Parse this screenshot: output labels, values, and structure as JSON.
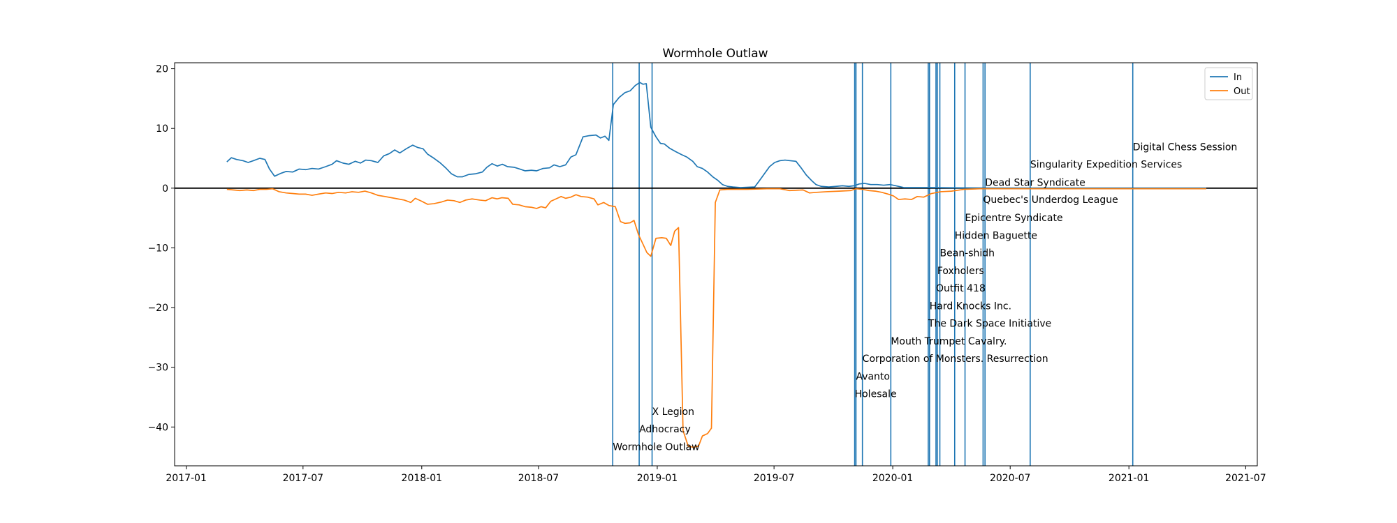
{
  "chart_data": {
    "type": "line",
    "title": "Wormhole Outlaw",
    "xlabel": "",
    "ylabel": "",
    "xlim": [
      "2016-12-14",
      "2021-07-19"
    ],
    "ylim": [
      -46.5,
      21
    ],
    "x_ticks": [
      "2017-01-01",
      "2017-07-01",
      "2018-01-01",
      "2018-07-01",
      "2019-01-01",
      "2019-07-01",
      "2020-01-01",
      "2020-07-01",
      "2021-01-01",
      "2021-07-01"
    ],
    "x_tick_labels": [
      "2017-01",
      "2017-07",
      "2018-01",
      "2018-07",
      "2019-01",
      "2019-07",
      "2020-01",
      "2020-07",
      "2021-01",
      "2021-07"
    ],
    "y_ticks": [
      20,
      10,
      0,
      -10,
      -20,
      -30,
      -40
    ],
    "y_tick_labels": [
      "20",
      "10",
      "0",
      "−10",
      "−20",
      "−30",
      "−40"
    ],
    "grid": false,
    "legend_position": "top-right",
    "zero_line": 0,
    "colors": {
      "in": "#1f77b4",
      "out": "#ff7f0e",
      "event": "#1f77b4",
      "zero": "#000000"
    },
    "series": [
      {
        "name": "In",
        "color": "#1f77b4",
        "points": [
          [
            "2017-03-05",
            4.4
          ],
          [
            "2017-03-12",
            5.1
          ],
          [
            "2017-03-20",
            4.8
          ],
          [
            "2017-03-30",
            4.6
          ],
          [
            "2017-04-07",
            4.3
          ],
          [
            "2017-04-15",
            4.6
          ],
          [
            "2017-04-25",
            5.0
          ],
          [
            "2017-05-03",
            4.8
          ],
          [
            "2017-05-10",
            3.2
          ],
          [
            "2017-05-18",
            2.0
          ],
          [
            "2017-05-28",
            2.5
          ],
          [
            "2017-06-05",
            2.8
          ],
          [
            "2017-06-15",
            2.7
          ],
          [
            "2017-06-25",
            3.2
          ],
          [
            "2017-07-05",
            3.1
          ],
          [
            "2017-07-15",
            3.3
          ],
          [
            "2017-07-25",
            3.2
          ],
          [
            "2017-08-05",
            3.6
          ],
          [
            "2017-08-15",
            4.0
          ],
          [
            "2017-08-22",
            4.6
          ],
          [
            "2017-09-01",
            4.2
          ],
          [
            "2017-09-10",
            4.0
          ],
          [
            "2017-09-20",
            4.5
          ],
          [
            "2017-09-28",
            4.2
          ],
          [
            "2017-10-06",
            4.7
          ],
          [
            "2017-10-15",
            4.6
          ],
          [
            "2017-10-25",
            4.3
          ],
          [
            "2017-11-03",
            5.4
          ],
          [
            "2017-11-12",
            5.8
          ],
          [
            "2017-11-20",
            6.4
          ],
          [
            "2017-11-28",
            5.9
          ],
          [
            "2017-12-08",
            6.6
          ],
          [
            "2017-12-18",
            7.2
          ],
          [
            "2017-12-26",
            6.8
          ],
          [
            "2018-01-03",
            6.6
          ],
          [
            "2018-01-10",
            5.7
          ],
          [
            "2018-01-20",
            5.0
          ],
          [
            "2018-01-30",
            4.2
          ],
          [
            "2018-02-08",
            3.3
          ],
          [
            "2018-02-16",
            2.4
          ],
          [
            "2018-02-25",
            1.9
          ],
          [
            "2018-03-05",
            1.9
          ],
          [
            "2018-03-15",
            2.3
          ],
          [
            "2018-03-25",
            2.4
          ],
          [
            "2018-04-05",
            2.7
          ],
          [
            "2018-04-12",
            3.5
          ],
          [
            "2018-04-20",
            4.1
          ],
          [
            "2018-04-28",
            3.7
          ],
          [
            "2018-05-06",
            4.0
          ],
          [
            "2018-05-14",
            3.6
          ],
          [
            "2018-05-24",
            3.5
          ],
          [
            "2018-06-02",
            3.2
          ],
          [
            "2018-06-10",
            2.9
          ],
          [
            "2018-06-20",
            3.0
          ],
          [
            "2018-06-28",
            2.9
          ],
          [
            "2018-07-08",
            3.3
          ],
          [
            "2018-07-18",
            3.4
          ],
          [
            "2018-07-25",
            3.9
          ],
          [
            "2018-08-03",
            3.6
          ],
          [
            "2018-08-12",
            3.9
          ],
          [
            "2018-08-20",
            5.2
          ],
          [
            "2018-08-28",
            5.6
          ],
          [
            "2018-09-08",
            8.6
          ],
          [
            "2018-09-18",
            8.8
          ],
          [
            "2018-09-28",
            8.9
          ],
          [
            "2018-10-05",
            8.4
          ],
          [
            "2018-10-12",
            8.7
          ],
          [
            "2018-10-18",
            8.0
          ],
          [
            "2018-10-25",
            14.0
          ],
          [
            "2018-11-03",
            15.2
          ],
          [
            "2018-11-12",
            16.0
          ],
          [
            "2018-11-20",
            16.3
          ],
          [
            "2018-11-28",
            17.2
          ],
          [
            "2018-12-05",
            17.7
          ],
          [
            "2018-12-10",
            17.4
          ],
          [
            "2018-12-15",
            17.5
          ],
          [
            "2018-12-22",
            10.2
          ],
          [
            "2018-12-30",
            8.6
          ],
          [
            "2019-01-06",
            7.5
          ],
          [
            "2019-01-12",
            7.4
          ],
          [
            "2019-01-20",
            6.7
          ],
          [
            "2019-01-30",
            6.1
          ],
          [
            "2019-02-08",
            5.6
          ],
          [
            "2019-02-16",
            5.2
          ],
          [
            "2019-02-25",
            4.5
          ],
          [
            "2019-03-04",
            3.6
          ],
          [
            "2019-03-12",
            3.3
          ],
          [
            "2019-03-20",
            2.7
          ],
          [
            "2019-03-28",
            1.9
          ],
          [
            "2019-04-05",
            1.3
          ],
          [
            "2019-04-12",
            0.6
          ],
          [
            "2019-04-20",
            0.3
          ],
          [
            "2019-04-28",
            0.2
          ],
          [
            "2019-05-10",
            0.1
          ],
          [
            "2019-06-01",
            0.2
          ],
          [
            "2019-06-08",
            1.2
          ],
          [
            "2019-06-16",
            2.4
          ],
          [
            "2019-06-24",
            3.6
          ],
          [
            "2019-07-02",
            4.3
          ],
          [
            "2019-07-10",
            4.6
          ],
          [
            "2019-07-18",
            4.7
          ],
          [
            "2019-07-26",
            4.6
          ],
          [
            "2019-08-04",
            4.5
          ],
          [
            "2019-08-12",
            3.4
          ],
          [
            "2019-08-20",
            2.2
          ],
          [
            "2019-08-28",
            1.3
          ],
          [
            "2019-09-04",
            0.6
          ],
          [
            "2019-09-12",
            0.3
          ],
          [
            "2019-09-24",
            0.2
          ],
          [
            "2019-10-05",
            0.3
          ],
          [
            "2019-10-15",
            0.4
          ],
          [
            "2019-10-25",
            0.3
          ],
          [
            "2019-11-02",
            0.4
          ],
          [
            "2019-11-10",
            0.7
          ],
          [
            "2019-11-18",
            0.8
          ],
          [
            "2019-11-28",
            0.6
          ],
          [
            "2019-12-08",
            0.6
          ],
          [
            "2019-12-18",
            0.5
          ],
          [
            "2019-12-28",
            0.6
          ],
          [
            "2020-01-06",
            0.4
          ],
          [
            "2020-01-18",
            0.1
          ],
          [
            "2020-03-01",
            0.1
          ],
          [
            "2020-06-01",
            0.0
          ],
          [
            "2020-12-01",
            0.0
          ],
          [
            "2021-05-01",
            0.0
          ]
        ]
      },
      {
        "name": "Out",
        "color": "#ff7f0e",
        "points": [
          [
            "2017-03-05",
            -0.2
          ],
          [
            "2017-03-15",
            -0.3
          ],
          [
            "2017-03-25",
            -0.4
          ],
          [
            "2017-04-05",
            -0.3
          ],
          [
            "2017-04-15",
            -0.4
          ],
          [
            "2017-04-25",
            -0.2
          ],
          [
            "2017-05-05",
            -0.2
          ],
          [
            "2017-05-15",
            -0.1
          ],
          [
            "2017-05-25",
            -0.6
          ],
          [
            "2017-06-05",
            -0.8
          ],
          [
            "2017-06-15",
            -0.9
          ],
          [
            "2017-06-25",
            -1.0
          ],
          [
            "2017-07-05",
            -1.0
          ],
          [
            "2017-07-15",
            -1.2
          ],
          [
            "2017-07-25",
            -1.0
          ],
          [
            "2017-08-05",
            -0.8
          ],
          [
            "2017-08-15",
            -0.9
          ],
          [
            "2017-08-25",
            -0.7
          ],
          [
            "2017-09-05",
            -0.8
          ],
          [
            "2017-09-15",
            -0.6
          ],
          [
            "2017-09-25",
            -0.7
          ],
          [
            "2017-10-05",
            -0.5
          ],
          [
            "2017-10-15",
            -0.8
          ],
          [
            "2017-10-25",
            -1.2
          ],
          [
            "2017-11-05",
            -1.4
          ],
          [
            "2017-11-15",
            -1.6
          ],
          [
            "2017-11-25",
            -1.8
          ],
          [
            "2017-12-05",
            -2.0
          ],
          [
            "2017-12-15",
            -2.4
          ],
          [
            "2017-12-22",
            -1.7
          ],
          [
            "2018-01-01",
            -2.2
          ],
          [
            "2018-01-10",
            -2.7
          ],
          [
            "2018-01-20",
            -2.6
          ],
          [
            "2018-02-01",
            -2.3
          ],
          [
            "2018-02-10",
            -2.0
          ],
          [
            "2018-02-20",
            -2.1
          ],
          [
            "2018-03-01",
            -2.4
          ],
          [
            "2018-03-10",
            -2.0
          ],
          [
            "2018-03-20",
            -1.8
          ],
          [
            "2018-04-01",
            -2.0
          ],
          [
            "2018-04-10",
            -2.1
          ],
          [
            "2018-04-20",
            -1.6
          ],
          [
            "2018-04-28",
            -1.8
          ],
          [
            "2018-05-05",
            -1.6
          ],
          [
            "2018-05-15",
            -1.7
          ],
          [
            "2018-05-22",
            -2.7
          ],
          [
            "2018-06-01",
            -2.8
          ],
          [
            "2018-06-10",
            -3.1
          ],
          [
            "2018-06-20",
            -3.2
          ],
          [
            "2018-06-28",
            -3.4
          ],
          [
            "2018-07-05",
            -3.1
          ],
          [
            "2018-07-12",
            -3.3
          ],
          [
            "2018-07-20",
            -2.2
          ],
          [
            "2018-07-28",
            -1.8
          ],
          [
            "2018-08-05",
            -1.4
          ],
          [
            "2018-08-12",
            -1.7
          ],
          [
            "2018-08-20",
            -1.5
          ],
          [
            "2018-08-28",
            -1.1
          ],
          [
            "2018-09-05",
            -1.4
          ],
          [
            "2018-09-15",
            -1.5
          ],
          [
            "2018-09-25",
            -1.8
          ],
          [
            "2018-10-01",
            -2.8
          ],
          [
            "2018-10-10",
            -2.4
          ],
          [
            "2018-10-18",
            -2.9
          ],
          [
            "2018-10-28",
            -3.1
          ],
          [
            "2018-11-05",
            -5.6
          ],
          [
            "2018-11-12",
            -5.9
          ],
          [
            "2018-11-20",
            -5.8
          ],
          [
            "2018-11-26",
            -5.4
          ],
          [
            "2018-12-03",
            -7.8
          ],
          [
            "2018-12-10",
            -9.4
          ],
          [
            "2018-12-16",
            -10.8
          ],
          [
            "2018-12-22",
            -11.4
          ],
          [
            "2018-12-30",
            -8.4
          ],
          [
            "2019-01-08",
            -8.3
          ],
          [
            "2019-01-15",
            -8.4
          ],
          [
            "2019-01-22",
            -9.6
          ],
          [
            "2019-01-28",
            -7.2
          ],
          [
            "2019-02-03",
            -6.6
          ],
          [
            "2019-02-10",
            -40.6
          ],
          [
            "2019-02-18",
            -43.2
          ],
          [
            "2019-02-26",
            -43.4
          ],
          [
            "2019-03-06",
            -43.2
          ],
          [
            "2019-03-12",
            -41.5
          ],
          [
            "2019-03-20",
            -41.1
          ],
          [
            "2019-03-26",
            -40.2
          ],
          [
            "2019-04-01",
            -2.4
          ],
          [
            "2019-04-08",
            -0.3
          ],
          [
            "2019-04-20",
            -0.2
          ],
          [
            "2019-05-20",
            -0.2
          ],
          [
            "2019-06-20",
            -0.1
          ],
          [
            "2019-07-10",
            -0.1
          ],
          [
            "2019-07-25",
            -0.4
          ],
          [
            "2019-08-15",
            -0.3
          ],
          [
            "2019-08-25",
            -0.8
          ],
          [
            "2019-09-05",
            -0.7
          ],
          [
            "2019-09-20",
            -0.6
          ],
          [
            "2019-10-10",
            -0.5
          ],
          [
            "2019-10-28",
            -0.4
          ],
          [
            "2019-11-05",
            -0.1
          ],
          [
            "2019-11-15",
            -0.2
          ],
          [
            "2019-11-25",
            -0.4
          ],
          [
            "2019-12-05",
            -0.5
          ],
          [
            "2019-12-15",
            -0.7
          ],
          [
            "2019-12-25",
            -1.0
          ],
          [
            "2020-01-02",
            -1.3
          ],
          [
            "2020-01-10",
            -1.9
          ],
          [
            "2020-01-20",
            -1.8
          ],
          [
            "2020-01-30",
            -1.9
          ],
          [
            "2020-02-08",
            -1.4
          ],
          [
            "2020-02-18",
            -1.5
          ],
          [
            "2020-03-01",
            -0.9
          ],
          [
            "2020-03-15",
            -0.6
          ],
          [
            "2020-04-01",
            -0.5
          ],
          [
            "2020-04-20",
            -0.2
          ],
          [
            "2020-05-15",
            -0.1
          ],
          [
            "2020-07-01",
            -0.1
          ],
          [
            "2020-10-01",
            -0.1
          ],
          [
            "2021-01-01",
            -0.1
          ],
          [
            "2021-05-01",
            -0.1
          ]
        ]
      }
    ],
    "events": [
      {
        "date": "2018-10-24",
        "label": "Wormhole Outlaw",
        "y": -43.3
      },
      {
        "date": "2018-12-04",
        "label": "Adhocracy",
        "y": -40.3
      },
      {
        "date": "2018-12-24",
        "label": "X Legion",
        "y": -37.4
      },
      {
        "date": "2019-11-03",
        "label": "Holesale",
        "y": -34.4
      },
      {
        "date": "2019-11-05",
        "label": "Avanto",
        "y": -31.5
      },
      {
        "date": "2019-11-15",
        "label": "Corporation of Monsters. Resurrection",
        "y": -28.5
      },
      {
        "date": "2019-12-29",
        "label": "Mouth Trumpet Cavalry.",
        "y": -25.6
      },
      {
        "date": "2020-02-25",
        "label": "The Dark Space Initiative",
        "y": -22.6
      },
      {
        "date": "2020-02-27",
        "label": "Hard Knocks Inc.",
        "y": -19.7
      },
      {
        "date": "2020-03-08",
        "label": "Outfit 418",
        "y": -16.7
      },
      {
        "date": "2020-03-10",
        "label": "Foxholers",
        "y": -13.8
      },
      {
        "date": "2020-03-14",
        "label": "Bean-shidh",
        "y": -10.8
      },
      {
        "date": "2020-04-06",
        "label": "Hidden Baguette",
        "y": -7.9
      },
      {
        "date": "2020-04-22",
        "label": "Epicentre Syndicate",
        "y": -4.9
      },
      {
        "date": "2020-05-20",
        "label": "Quebec's Underdog League",
        "y": -1.9
      },
      {
        "date": "2020-05-23",
        "label": "Dead Star Syndicate",
        "y": 1.0
      },
      {
        "date": "2020-08-01",
        "label": "Singularity Expedition Services",
        "y": 4.0
      },
      {
        "date": "2021-01-07",
        "label": "Digital Chess Session",
        "y": 6.9
      }
    ]
  }
}
